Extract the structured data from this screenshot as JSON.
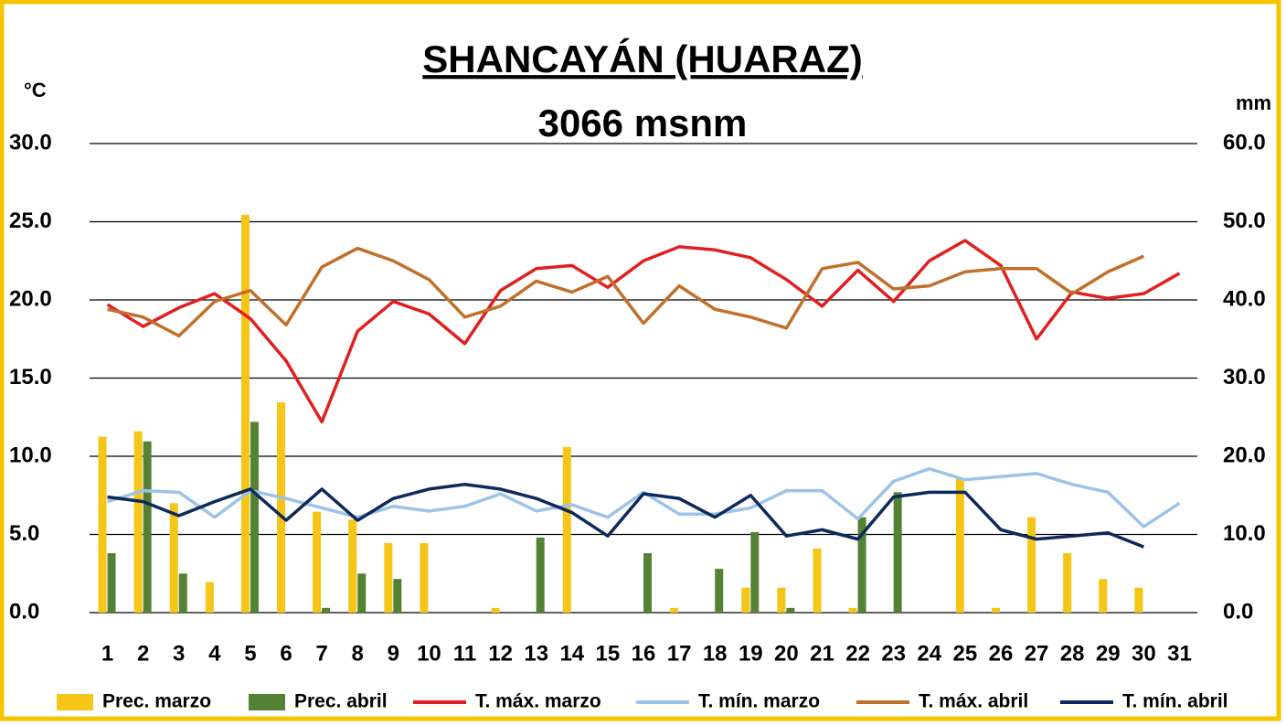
{
  "chart_data": {
    "type": "combo",
    "title": "SHANCAYÁN (HUARAZ)",
    "subtitle": "3066 msnm",
    "ylabel": "°C",
    "y2label": "mm",
    "categories": [
      "1",
      "2",
      "3",
      "4",
      "5",
      "6",
      "7",
      "8",
      "9",
      "10",
      "11",
      "12",
      "13",
      "14",
      "15",
      "16",
      "17",
      "18",
      "19",
      "20",
      "21",
      "22",
      "23",
      "24",
      "25",
      "26",
      "27",
      "28",
      "29",
      "30",
      "31"
    ],
    "ylim": [
      0,
      30
    ],
    "yticks": [
      {
        "value": 0,
        "label": "0.0"
      },
      {
        "value": 5,
        "label": "5.0"
      },
      {
        "value": 10,
        "label": "10.0"
      },
      {
        "value": 15,
        "label": "15.0"
      },
      {
        "value": 20,
        "label": "20.0"
      },
      {
        "value": 25,
        "label": "25.0"
      },
      {
        "value": 30,
        "label": "30.0"
      }
    ],
    "y2lim": [
      0,
      60
    ],
    "y2ticks": [
      {
        "value": 0,
        "label": "0.0"
      },
      {
        "value": 10,
        "label": "10.0"
      },
      {
        "value": 20,
        "label": "20.0"
      },
      {
        "value": 30,
        "label": "30.0"
      },
      {
        "value": 40,
        "label": "40.0"
      },
      {
        "value": 50,
        "label": "50.0"
      },
      {
        "value": 60,
        "label": "60.0"
      }
    ],
    "grid": true,
    "legend": "bottom",
    "series": [
      {
        "name": "Prec. marzo",
        "type": "bar",
        "axis": "y2",
        "color": "#f5c518",
        "values": [
          22.5,
          23.2,
          14.0,
          3.9,
          50.9,
          26.9,
          12.9,
          11.9,
          8.9,
          8.9,
          0,
          0.6,
          0,
          21.2,
          0,
          0,
          0.6,
          0,
          3.2,
          3.2,
          8.2,
          0.6,
          0,
          0,
          17.2,
          0.6,
          12.2,
          7.6,
          4.3,
          3.2,
          0
        ]
      },
      {
        "name": "Prec. abril",
        "type": "bar",
        "axis": "y2",
        "color": "#548235",
        "values": [
          7.6,
          21.9,
          5.0,
          0,
          24.4,
          0,
          0.6,
          5.0,
          4.3,
          0,
          0,
          0,
          9.6,
          0,
          0,
          7.6,
          0,
          5.6,
          10.3,
          0.6,
          0,
          12.2,
          15.4,
          0,
          0,
          0,
          0,
          0,
          0,
          0,
          null
        ]
      },
      {
        "name": "T. máx. marzo",
        "type": "line",
        "color": "#e02020",
        "values": [
          19.7,
          18.3,
          19.5,
          20.4,
          18.8,
          16.1,
          12.2,
          18.0,
          19.9,
          19.1,
          17.2,
          20.6,
          22.0,
          22.2,
          20.8,
          22.5,
          23.4,
          23.2,
          22.7,
          21.3,
          19.6,
          21.9,
          19.9,
          22.5,
          23.8,
          22.2,
          17.5,
          20.5,
          20.1,
          20.4,
          21.7
        ]
      },
      {
        "name": "T. mín. marzo",
        "type": "line",
        "color": "#9dc3e6",
        "values": [
          7.1,
          7.8,
          7.7,
          6.1,
          7.8,
          7.3,
          6.7,
          6.1,
          6.8,
          6.5,
          6.8,
          7.6,
          6.5,
          6.9,
          6.1,
          7.7,
          6.3,
          6.3,
          6.7,
          7.8,
          7.8,
          6.0,
          8.4,
          9.2,
          8.5,
          8.7,
          8.9,
          8.2,
          7.7,
          5.5,
          7.0
        ]
      },
      {
        "name": "T. máx. abril",
        "type": "line",
        "color": "#c0702a",
        "values": [
          19.4,
          18.9,
          17.7,
          19.9,
          20.6,
          18.4,
          22.1,
          23.3,
          22.5,
          21.3,
          18.9,
          19.6,
          21.2,
          20.5,
          21.5,
          18.5,
          20.9,
          19.4,
          18.9,
          18.2,
          22.0,
          22.4,
          20.7,
          20.9,
          21.8,
          22.0,
          22.0,
          20.4,
          21.8,
          22.8,
          null
        ]
      },
      {
        "name": "T. mín. abril",
        "type": "line",
        "color": "#0d2a5c",
        "values": [
          7.4,
          7.1,
          6.2,
          7.1,
          7.9,
          5.9,
          7.9,
          5.9,
          7.3,
          7.9,
          8.2,
          7.9,
          7.3,
          6.4,
          4.9,
          7.6,
          7.3,
          6.1,
          7.5,
          4.9,
          5.3,
          4.7,
          7.4,
          7.7,
          7.7,
          5.3,
          4.7,
          4.9,
          5.1,
          4.2,
          null
        ]
      }
    ]
  }
}
